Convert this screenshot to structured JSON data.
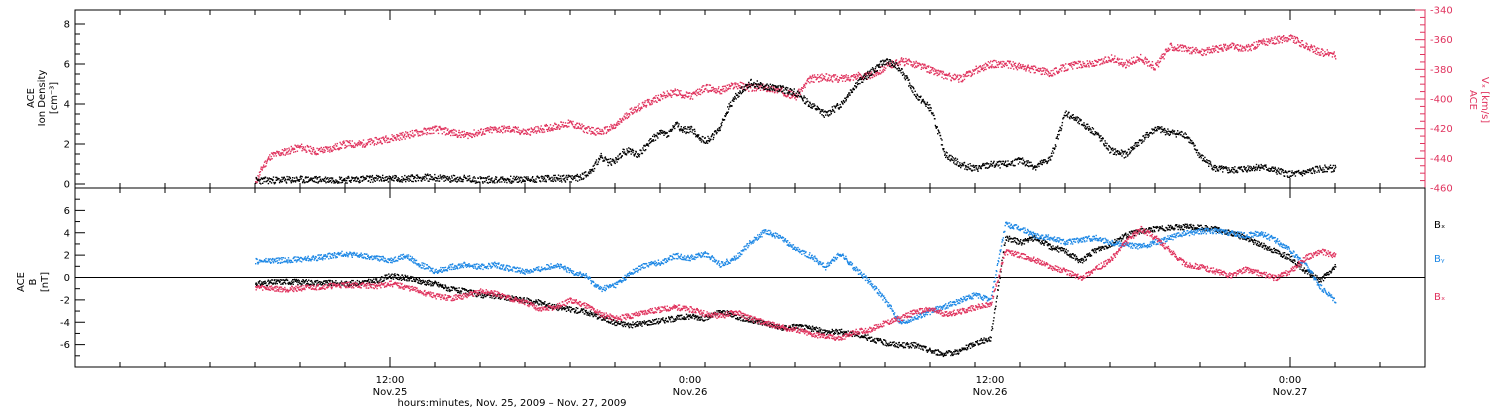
{
  "chart_data": [
    {
      "type": "scatter",
      "panel": "ion-density-and-velocity",
      "left_axis": {
        "label_lines": [
          "ACE",
          "Ion Density",
          "[cm⁻³]"
        ],
        "ylim": [
          -0.2,
          8.7
        ],
        "ticks": [
          0,
          2,
          4,
          6,
          8
        ]
      },
      "right_axis": {
        "label_lines": [
          "ACE",
          "Vₓ [km/s]"
        ],
        "ylim": [
          -460,
          -340
        ],
        "ticks": [
          -340,
          -360,
          -380,
          -400,
          -420,
          -440,
          -460
        ]
      },
      "colors": {
        "density": "#000000",
        "velocity": "#e0335e"
      },
      "series": [
        {
          "axis": "left",
          "color": "density",
          "x": [
            -9,
            -6,
            -3,
            -1,
            1,
            2,
            3,
            3.5,
            4,
            4.5,
            5,
            5.5,
            6,
            7,
            8,
            9,
            10,
            11,
            12,
            12.5,
            13,
            13.5,
            14,
            14.5,
            15,
            15.5,
            16,
            16.5,
            17,
            17.5,
            18,
            18.5,
            19,
            19.5,
            20,
            20.5,
            21,
            21.5,
            22,
            22.5,
            23,
            23.5,
            24,
            25,
            26,
            27,
            28,
            29,
            30,
            31,
            32,
            33,
            34,
            35,
            36,
            37,
            38,
            39,
            40,
            41,
            42,
            43,
            44,
            45,
            46,
            47,
            48,
            49,
            50,
            51,
            52,
            53,
            54,
            55,
            56,
            57,
            58,
            59,
            60,
            61,
            62,
            63
          ],
          "y": [
            0.2,
            0.25,
            0.25,
            0.3,
            0.3,
            0.35,
            0.35,
            0.3,
            0.3,
            0.3,
            0.3,
            0.25,
            0.25,
            0.25,
            0.25,
            0.25,
            0.3,
            0.3,
            0.3,
            0.35,
            0.5,
            0.8,
            1.4,
            1.1,
            1.2,
            1.6,
            1.7,
            1.5,
            1.9,
            2.3,
            2.6,
            2.5,
            3.0,
            2.7,
            2.8,
            2.4,
            2.2,
            2.4,
            2.9,
            3.8,
            4.4,
            4.8,
            5.1,
            4.9,
            4.8,
            4.6,
            4.0,
            3.5,
            4.0,
            5.0,
            5.6,
            6.2,
            5.8,
            4.5,
            3.8,
            1.5,
            1.0,
            0.8,
            1.0,
            1.0,
            1.2,
            0.9,
            1.3,
            3.6,
            3.1,
            2.6,
            1.7,
            1.5,
            2.2,
            2.8,
            2.6,
            2.5,
            1.4,
            0.8,
            0.7,
            0.8,
            0.9,
            0.7,
            0.5,
            0.6,
            0.8,
            0.8
          ]
        },
        {
          "axis": "right",
          "color": "velocity",
          "x": [
            -9,
            -8.5,
            -8,
            -7,
            -6,
            -5,
            -4,
            -3,
            -2,
            -1,
            0,
            1,
            2,
            3,
            4,
            5,
            6,
            7,
            8,
            9,
            10,
            11,
            12,
            13,
            14,
            15,
            16,
            17,
            18,
            19,
            20,
            21,
            22,
            23,
            24,
            25,
            26,
            27,
            28,
            29,
            30,
            31,
            32,
            33,
            34,
            35,
            36,
            37,
            38,
            39,
            40,
            41,
            42,
            43,
            44,
            45,
            46,
            47,
            48,
            49,
            50,
            51,
            52,
            53,
            54,
            55,
            56,
            57,
            58,
            59,
            60,
            61,
            62,
            63
          ],
          "y": [
            -456,
            -445,
            -438,
            -435,
            -432,
            -435,
            -433,
            -430,
            -430,
            -428,
            -426,
            -424,
            -422,
            -420,
            -422,
            -424,
            -422,
            -420,
            -420,
            -422,
            -420,
            -418,
            -416,
            -420,
            -422,
            -418,
            -408,
            -403,
            -398,
            -395,
            -398,
            -392,
            -394,
            -390,
            -392,
            -392,
            -394,
            -398,
            -386,
            -385,
            -386,
            -384,
            -384,
            -378,
            -374,
            -376,
            -380,
            -384,
            -386,
            -380,
            -376,
            -376,
            -378,
            -380,
            -382,
            -378,
            -376,
            -376,
            -372,
            -376,
            -372,
            -378,
            -364,
            -366,
            -368,
            -366,
            -364,
            -366,
            -362,
            -360,
            -358,
            -364,
            -368,
            -370
          ]
        }
      ]
    },
    {
      "type": "scatter",
      "panel": "magnetic-field-components",
      "y_axis": {
        "label_lines": [
          "ACE",
          "B",
          "[nT]"
        ],
        "ylim": [
          -8.0,
          8.0
        ],
        "ticks": [
          -6,
          -4,
          -2,
          0,
          2,
          4,
          6
        ]
      },
      "colors": {
        "Bx": "#000000",
        "By": "#1e88e5",
        "Bz": "#e0335e"
      },
      "legend": [
        "Bₓ",
        "Bᵧ",
        "Bₓ"
      ],
      "legend_colors": [
        "Bx",
        "By",
        "Bz"
      ],
      "series": [
        {
          "name": "Bₓ",
          "color": "Bx",
          "x": [
            -9,
            -7,
            -5,
            -3,
            -1,
            0,
            1,
            2,
            3,
            4,
            5,
            6,
            7,
            8,
            9,
            10,
            11,
            12,
            13,
            14,
            15,
            16,
            17,
            18,
            19,
            20,
            21,
            22,
            23,
            24,
            25,
            26,
            27,
            28,
            29,
            30,
            31,
            32,
            33,
            34,
            35,
            36,
            37,
            38,
            39,
            40,
            41,
            42,
            43,
            44,
            45,
            46,
            47,
            48,
            49,
            50,
            51,
            52,
            53,
            54,
            55,
            56,
            57,
            58,
            59,
            60,
            61,
            62,
            63
          ],
          "y": [
            -0.5,
            -0.3,
            -0.4,
            -0.5,
            -0.3,
            0.2,
            0.0,
            -0.3,
            -0.5,
            -1.0,
            -1.2,
            -1.5,
            -1.6,
            -1.8,
            -2.0,
            -2.2,
            -2.6,
            -2.8,
            -3.0,
            -3.5,
            -4.0,
            -4.2,
            -4.0,
            -3.8,
            -3.6,
            -3.4,
            -3.6,
            -3.0,
            -3.4,
            -3.8,
            -4.0,
            -4.5,
            -4.3,
            -4.5,
            -4.8,
            -4.8,
            -5.0,
            -5.4,
            -5.8,
            -6.0,
            -6.0,
            -6.5,
            -6.8,
            -6.5,
            -5.8,
            -5.4,
            3.6,
            3.2,
            3.6,
            2.8,
            2.4,
            1.5,
            2.5,
            3.0,
            3.8,
            4.2,
            4.4,
            4.5,
            4.6,
            4.5,
            4.4,
            4.0,
            3.6,
            3.0,
            2.4,
            1.8,
            0.6,
            -0.2,
            1.0
          ]
        },
        {
          "name": "Bᵧ",
          "color": "By",
          "x": [
            -9,
            -7,
            -5,
            -3,
            -1,
            0,
            1,
            2,
            3,
            4,
            5,
            6,
            7,
            8,
            9,
            10,
            11,
            12,
            13,
            14,
            15,
            16,
            17,
            18,
            19,
            20,
            21,
            22,
            23,
            24,
            25,
            26,
            27,
            28,
            29,
            30,
            31,
            32,
            33,
            34,
            35,
            36,
            37,
            38,
            39,
            40,
            41,
            42,
            43,
            44,
            45,
            46,
            47,
            48,
            49,
            50,
            51,
            52,
            53,
            54,
            55,
            56,
            57,
            58,
            59,
            60,
            61,
            62,
            63
          ],
          "y": [
            1.5,
            1.6,
            1.8,
            2.2,
            1.8,
            1.6,
            2.0,
            1.2,
            0.6,
            1.0,
            1.2,
            1.0,
            1.2,
            0.8,
            0.6,
            0.8,
            1.2,
            0.6,
            0.2,
            -1.0,
            -0.6,
            0.4,
            1.2,
            1.4,
            2.0,
            1.8,
            2.2,
            1.2,
            1.8,
            3.2,
            4.2,
            3.6,
            2.6,
            2.0,
            1.0,
            2.2,
            0.8,
            -0.4,
            -2.0,
            -4.0,
            -3.5,
            -3.0,
            -2.5,
            -2.0,
            -1.5,
            -2.0,
            4.8,
            4.4,
            3.8,
            3.6,
            3.2,
            3.4,
            3.6,
            3.2,
            3.0,
            2.8,
            3.2,
            3.6,
            4.0,
            4.2,
            4.2,
            4.0,
            3.8,
            4.0,
            3.4,
            2.4,
            1.2,
            -0.8,
            -2.0
          ]
        },
        {
          "name": "Bₓ",
          "color": "Bz",
          "x": [
            -9,
            -7,
            -5,
            -3,
            -1,
            0,
            1,
            2,
            3,
            4,
            5,
            6,
            7,
            8,
            9,
            10,
            11,
            12,
            13,
            14,
            15,
            16,
            17,
            18,
            19,
            20,
            21,
            22,
            23,
            24,
            25,
            26,
            27,
            28,
            29,
            30,
            31,
            32,
            33,
            34,
            35,
            36,
            37,
            38,
            39,
            40,
            41,
            42,
            43,
            44,
            45,
            46,
            47,
            48,
            49,
            50,
            51,
            52,
            53,
            54,
            55,
            56,
            57,
            58,
            59,
            60,
            61,
            62,
            63
          ],
          "y": [
            -0.8,
            -1.0,
            -0.8,
            -0.6,
            -0.7,
            -0.5,
            -0.8,
            -1.2,
            -1.6,
            -1.8,
            -1.6,
            -1.2,
            -1.4,
            -1.8,
            -2.2,
            -2.8,
            -2.6,
            -2.0,
            -2.4,
            -3.2,
            -3.6,
            -3.4,
            -3.0,
            -2.8,
            -2.6,
            -2.8,
            -3.2,
            -3.4,
            -3.0,
            -3.6,
            -4.0,
            -4.4,
            -4.6,
            -5.0,
            -5.2,
            -5.4,
            -4.8,
            -4.6,
            -4.0,
            -3.6,
            -3.0,
            -2.8,
            -3.2,
            -3.0,
            -2.6,
            -2.4,
            2.4,
            2.0,
            1.6,
            1.0,
            0.6,
            0.0,
            0.8,
            1.6,
            3.2,
            4.4,
            3.6,
            2.4,
            1.2,
            1.0,
            0.6,
            0.2,
            0.8,
            0.4,
            0.0,
            0.6,
            1.8,
            2.4,
            2.0
          ]
        }
      ]
    }
  ],
  "time_axis": {
    "xlim": [
      -21,
      69
    ],
    "major": [
      {
        "x": 0,
        "label": "12:00",
        "sublabel": "Nov.25"
      },
      {
        "x": 20,
        "label": "0:00",
        "sublabel": "Nov.26"
      },
      {
        "x": 40,
        "label": "12:00",
        "sublabel": "Nov.26"
      },
      {
        "x": 60,
        "label": "0:00",
        "sublabel": "Nov.27"
      }
    ],
    "title": "hours:minutes, Nov. 25, 2009 – Nov. 27, 2009"
  }
}
